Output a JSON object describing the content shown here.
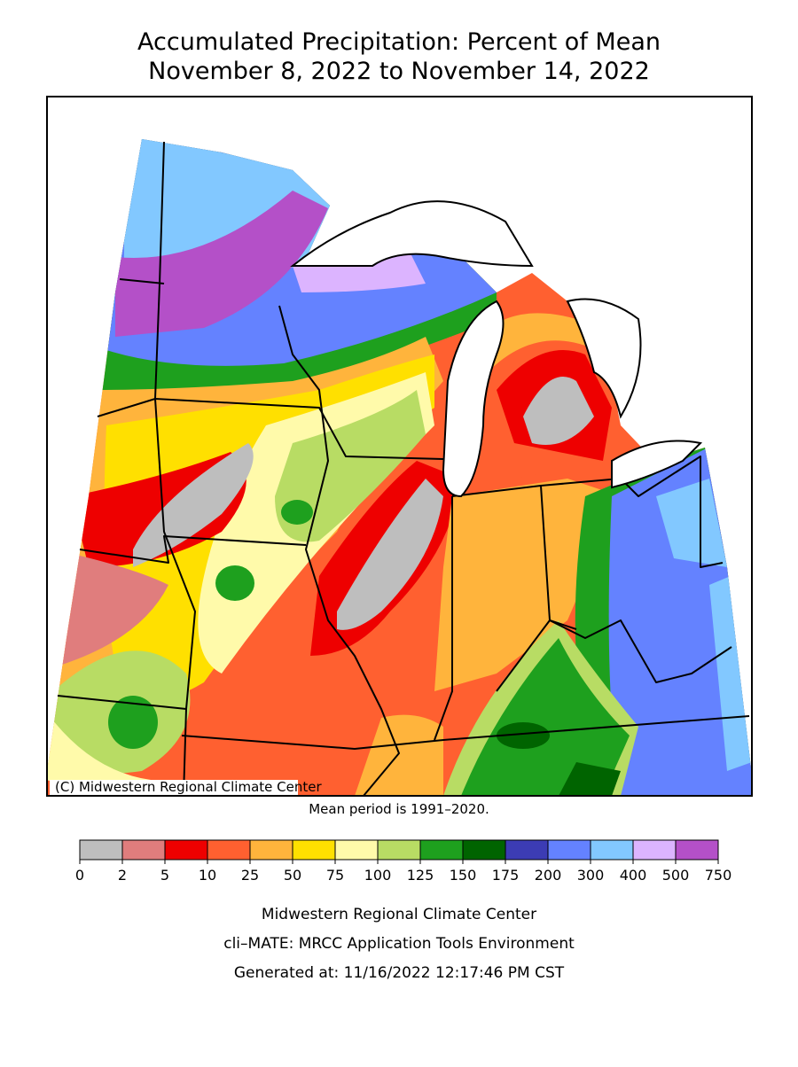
{
  "title": [
    "Accumulated Precipitation: Percent of Mean",
    "November 8, 2022 to November 14, 2022"
  ],
  "copyright": "(C) Midwestern Regional Climate Center",
  "mean_period": "Mean period is 1991–2020.",
  "legend": {
    "breaks": [
      0,
      2,
      5,
      10,
      25,
      50,
      75,
      100,
      125,
      150,
      175,
      200,
      300,
      400,
      500,
      750
    ],
    "colors": [
      "#bebebe",
      "#e07d7d",
      "#ee0000",
      "#ff6030",
      "#ffb43c",
      "#ffe000",
      "#fffaaa",
      "#b8dc64",
      "#1ea01e",
      "#006400",
      "#3c3cb4",
      "#6482ff",
      "#82c8ff",
      "#dcb4ff",
      "#b450c8"
    ]
  },
  "footer": [
    "Midwestern Regional Climate Center",
    "cli–MATE: MRCC Application Tools Environment",
    "Generated at: 11/16/2022 12:17:46 PM CST"
  ]
}
